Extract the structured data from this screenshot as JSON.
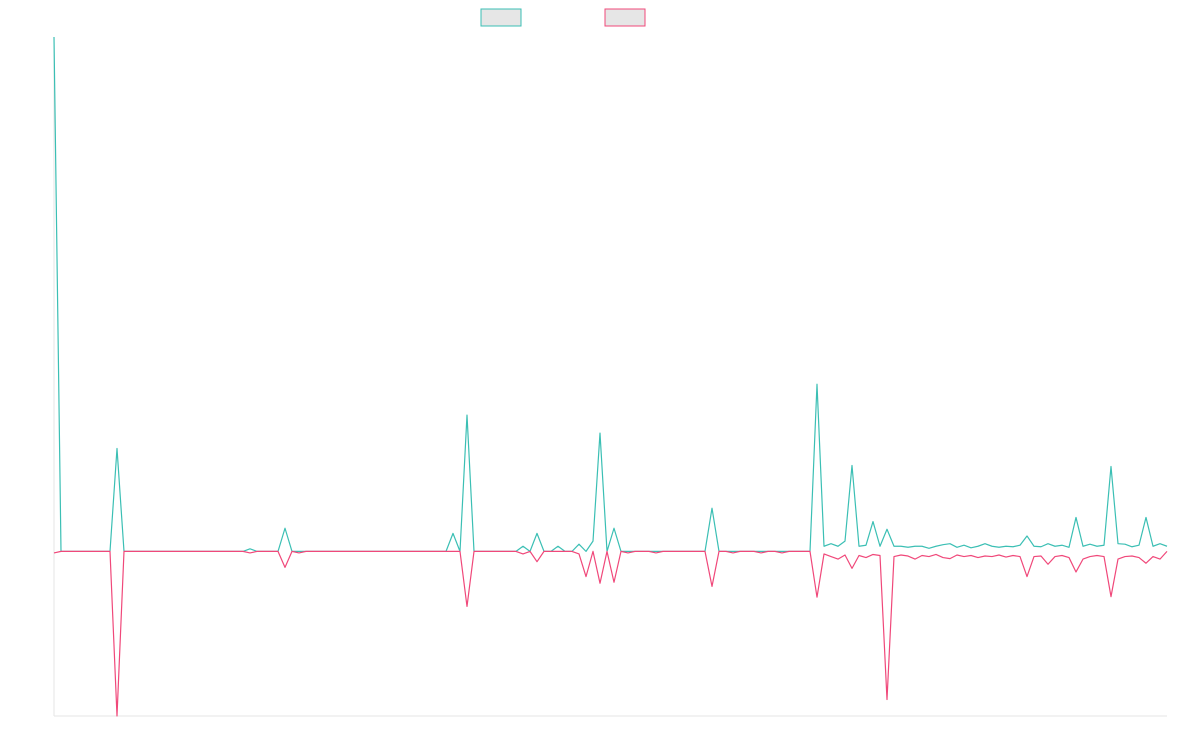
{
  "chart_data": {
    "type": "line",
    "ylim": [
      -32,
      100
    ],
    "series": [
      {
        "color": "#3bbfb4",
        "values": [
          100,
          0,
          0,
          0,
          0,
          0,
          0,
          0,
          0,
          20,
          0,
          0,
          0,
          0,
          0,
          0,
          0,
          0,
          0,
          0,
          0,
          0,
          0,
          0,
          0,
          0,
          0,
          0,
          0.5,
          0,
          0,
          0,
          0,
          4.5,
          0,
          0,
          0,
          0,
          0,
          0,
          0,
          0,
          0,
          0,
          0,
          0,
          0,
          0,
          0,
          0,
          0,
          0,
          0,
          0,
          0,
          0,
          0,
          3.5,
          0,
          26.5,
          0,
          0,
          0,
          0,
          0,
          0,
          0,
          1,
          0,
          3.5,
          0,
          0,
          1,
          0,
          0,
          1.4,
          0,
          2,
          23,
          0,
          4.5,
          0,
          0,
          0,
          0,
          0,
          0,
          0,
          0,
          0,
          0,
          0,
          0,
          0,
          8.4,
          0,
          0,
          0,
          0,
          0,
          0,
          0,
          0,
          0,
          0,
          0,
          0,
          0,
          0,
          32.5,
          1,
          1.5,
          1,
          2,
          16.7,
          1,
          1.2,
          5.8,
          1,
          4.3,
          1,
          1,
          0.8,
          1,
          1,
          0.6,
          1,
          1.3,
          1.5,
          0.8,
          1.2,
          0.7,
          1,
          1.5,
          1,
          0.8,
          1,
          0.9,
          1.2,
          3,
          1,
          0.9,
          1.5,
          1,
          1.2,
          0.8,
          6.6,
          1,
          1.4,
          1,
          1.2,
          16.5,
          1.5,
          1.4,
          0.9,
          1.2,
          6.6,
          1,
          1.5,
          1
        ]
      },
      {
        "color": "#f0487a",
        "values": [
          -0.3,
          0,
          0,
          0,
          0,
          0,
          0,
          0,
          0,
          -32,
          0,
          0,
          0,
          0,
          0,
          0,
          0,
          0,
          0,
          0,
          0,
          0,
          0,
          0,
          0,
          0,
          0,
          0,
          -0.3,
          0,
          0,
          0,
          0,
          -3.1,
          0,
          -0.3,
          0,
          0,
          0,
          0,
          0,
          0,
          0,
          0,
          0,
          0,
          0,
          0,
          0,
          0,
          0,
          0,
          0,
          0,
          0,
          0,
          0,
          0,
          0,
          -10.7,
          0,
          0,
          0,
          0,
          0,
          0,
          0,
          -0.5,
          0,
          -2,
          0,
          0,
          0,
          0,
          0,
          -0.5,
          -4.9,
          0,
          -6.2,
          0,
          -6,
          0,
          -0.3,
          0,
          0,
          0,
          -0.3,
          0,
          0,
          0,
          0,
          0,
          0,
          0,
          -6.8,
          0,
          0,
          -0.3,
          0,
          0,
          0,
          -0.3,
          0,
          0,
          -0.3,
          0,
          0,
          0,
          0,
          -8.9,
          -0.5,
          -1,
          -1.5,
          -0.7,
          -3.3,
          -0.8,
          -1.2,
          -0.6,
          -0.8,
          -28.8,
          -1,
          -0.7,
          -0.9,
          -1.5,
          -0.8,
          -1,
          -0.6,
          -1.2,
          -1.4,
          -0.7,
          -1,
          -0.8,
          -1.2,
          -0.9,
          -1,
          -0.7,
          -1.1,
          -0.8,
          -1,
          -4.9,
          -1,
          -0.9,
          -2.5,
          -1,
          -0.8,
          -1.2,
          -4,
          -1.5,
          -1,
          -0.8,
          -1,
          -8.8,
          -1.5,
          -1,
          -0.9,
          -1.2,
          -2.3,
          -1,
          -1.5,
          0
        ]
      }
    ]
  }
}
